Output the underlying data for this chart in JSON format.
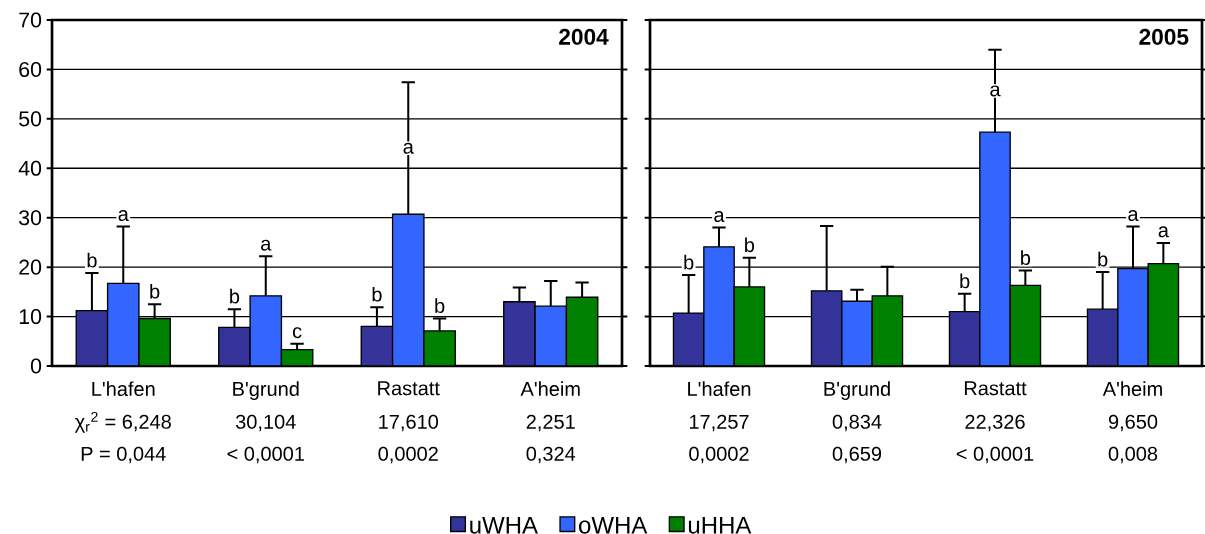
{
  "chart_data": [
    {
      "type": "bar",
      "title": "2004",
      "categories": [
        "L'hafen",
        "B'grund",
        "Rastatt",
        "A'heim"
      ],
      "series": [
        {
          "name": "uWHA",
          "color": "#333399",
          "values": [
            11.2,
            7.8,
            8.0,
            13.0
          ],
          "errors": [
            [
              11.2,
              18.8
            ],
            [
              7.8,
              11.5
            ],
            [
              8.0,
              11.9
            ],
            [
              13.0,
              15.9
            ]
          ],
          "value_labels": [
            "b",
            "b",
            "b",
            null
          ]
        },
        {
          "name": "oWHA",
          "color": "#3366ff",
          "values": [
            16.7,
            14.2,
            30.7,
            12.1
          ],
          "errors": [
            [
              16.7,
              28.2
            ],
            [
              14.2,
              22.2
            ],
            [
              30.7,
              57.4
            ],
            [
              12.1,
              17.2
            ]
          ],
          "value_labels": [
            "a",
            "a",
            "a",
            null
          ]
        },
        {
          "name": "uHHA",
          "color": "#008000",
          "values": [
            9.6,
            3.3,
            7.1,
            13.9
          ],
          "errors": [
            [
              9.6,
              12.5
            ],
            [
              3.3,
              4.5
            ],
            [
              7.1,
              9.6
            ],
            [
              13.9,
              16.9
            ]
          ],
          "value_labels": [
            "b",
            "c",
            "b",
            null
          ]
        }
      ],
      "ylim": [
        0,
        70
      ],
      "yticks": [
        0,
        10,
        20,
        30,
        40,
        50,
        60,
        70
      ],
      "grid": "y",
      "legend": "bottom",
      "annotations": [
        "χ$_{r}$$^{2}$ = 6,248",
        "30,104",
        "17,610",
        "2,251",
        "P = 0,044",
        "< 0,0001",
        "0,0002",
        "0,324"
      ]
    },
    {
      "type": "bar",
      "title": "2005",
      "categories": [
        "L'hafen",
        "B'grund",
        "Rastatt",
        "A'heim"
      ],
      "series": [
        {
          "color": "#333399",
          "values": [
            10.7,
            15.2,
            11.0,
            11.5
          ],
          "errors": [
            [
              10.7,
              18.4
            ],
            [
              15.2,
              28.3
            ],
            [
              11.0,
              14.6
            ],
            [
              11.5,
              19.0
            ]
          ],
          "value_labels": [
            "b",
            null,
            "b",
            "b"
          ]
        },
        {
          "color": "#3366ff",
          "values": [
            24.1,
            13.1,
            47.3,
            19.7
          ],
          "errors": [
            [
              24.1,
              28.0
            ],
            [
              13.1,
              15.4
            ],
            [
              47.3,
              64.0
            ],
            [
              19.7,
              28.2
            ]
          ],
          "value_labels": [
            "a",
            null,
            "a",
            "a"
          ]
        },
        {
          "color": "#008000",
          "values": [
            16.0,
            14.2,
            16.3,
            20.7
          ],
          "errors": [
            [
              16.0,
              21.9
            ],
            [
              14.2,
              20.1
            ],
            [
              16.3,
              19.3
            ],
            [
              20.7,
              24.9
            ]
          ],
          "value_labels": [
            "b",
            null,
            "b",
            "a"
          ]
        }
      ],
      "ylim": [
        0,
        70
      ],
      "yticks": [
        0,
        10,
        20,
        30,
        40,
        50,
        60,
        70
      ],
      "grid": "y",
      "tick_labels": "x",
      "annotations": [
        "17,257",
        "0,834",
        "22,326",
        "9,650",
        "0,0002",
        "0,659",
        "< 0,0001",
        "0,008"
      ]
    }
  ]
}
